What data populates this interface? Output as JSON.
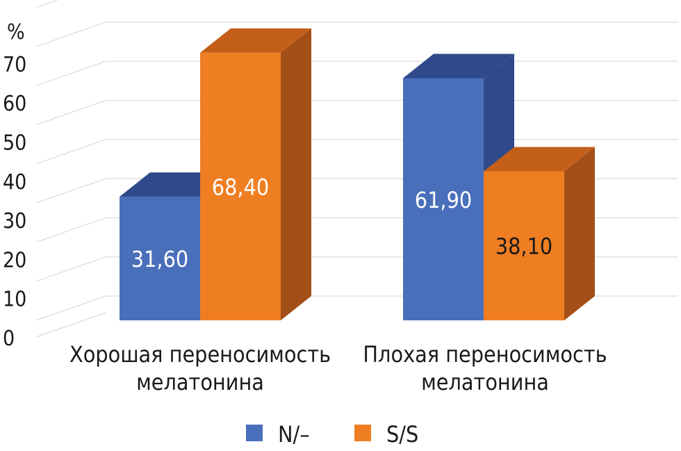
{
  "chart_data": {
    "type": "bar",
    "variant": "3d-clustered",
    "unit": "%",
    "categories": [
      [
        "Хорошая переносимость",
        "мелатонина"
      ],
      [
        "Плохая переносимость",
        "мелатонина"
      ]
    ],
    "series": [
      {
        "name": "N/–",
        "values": [
          31.6,
          61.9
        ],
        "labels": [
          "31,60",
          "61,90"
        ],
        "color": "#4a6fba",
        "side_color": "#2f4a8a",
        "top_color": "#2f4a8a"
      },
      {
        "name": "S/S",
        "values": [
          68.4,
          38.1
        ],
        "labels": [
          "68,40",
          "38,10"
        ],
        "color": "#ef7e23",
        "side_color": "#a44f17",
        "top_color": "#c45f1a"
      }
    ],
    "yticks": [
      "0",
      "10",
      "20",
      "30",
      "40",
      "50",
      "60",
      "70"
    ],
    "ylim": [
      0,
      80
    ],
    "grid": true,
    "legend": "bottom-center"
  }
}
